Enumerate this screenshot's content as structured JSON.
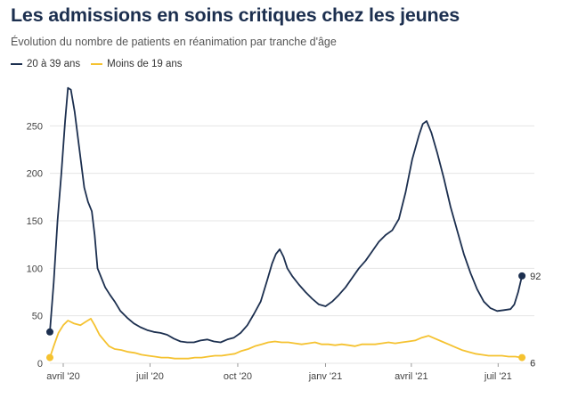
{
  "title": "Les admissions en soins critiques chez les jeunes",
  "subtitle": "Évolution du nombre de patients en réanimation par tranche d'âge",
  "colors": {
    "series_a": "#1c2f4f",
    "series_b": "#f5c230",
    "grid": "#e4e4e4"
  },
  "chart_data": {
    "type": "line",
    "title": "Les admissions en soins critiques chez les jeunes",
    "subtitle": "Évolution du nombre de patients en réanimation par tranche d'âge",
    "xlabel": "",
    "ylabel": "",
    "xlim": [
      "2020-03-18",
      "2021-08-08"
    ],
    "ylim": [
      0,
      300
    ],
    "yticks": [
      0,
      50,
      100,
      150,
      200,
      250
    ],
    "xticks": [
      {
        "date": "2020-04-01",
        "label": "avril '20"
      },
      {
        "date": "2020-07-01",
        "label": "juil '20"
      },
      {
        "date": "2020-10-01",
        "label": "oct '20"
      },
      {
        "date": "2021-01-01",
        "label": "janv '21"
      },
      {
        "date": "2021-04-01",
        "label": "avril '21"
      },
      {
        "date": "2021-07-01",
        "label": "juil '21"
      }
    ],
    "grid": "horizontal",
    "legend": "top-left",
    "series": [
      {
        "name": "20 à 39 ans",
        "color": "#1c2f4f",
        "end_label": "92",
        "points": [
          [
            "2020-03-18",
            33
          ],
          [
            "2020-03-22",
            85
          ],
          [
            "2020-03-26",
            150
          ],
          [
            "2020-03-30",
            200
          ],
          [
            "2020-04-03",
            255
          ],
          [
            "2020-04-06",
            290
          ],
          [
            "2020-04-09",
            288
          ],
          [
            "2020-04-13",
            265
          ],
          [
            "2020-04-18",
            225
          ],
          [
            "2020-04-23",
            185
          ],
          [
            "2020-04-27",
            170
          ],
          [
            "2020-05-01",
            160
          ],
          [
            "2020-05-04",
            135
          ],
          [
            "2020-05-07",
            100
          ],
          [
            "2020-05-11",
            90
          ],
          [
            "2020-05-15",
            80
          ],
          [
            "2020-05-20",
            72
          ],
          [
            "2020-05-25",
            65
          ],
          [
            "2020-05-31",
            55
          ],
          [
            "2020-06-07",
            48
          ],
          [
            "2020-06-14",
            42
          ],
          [
            "2020-06-21",
            38
          ],
          [
            "2020-06-28",
            35
          ],
          [
            "2020-07-05",
            33
          ],
          [
            "2020-07-12",
            32
          ],
          [
            "2020-07-19",
            30
          ],
          [
            "2020-07-26",
            26
          ],
          [
            "2020-08-02",
            23
          ],
          [
            "2020-08-09",
            22
          ],
          [
            "2020-08-16",
            22
          ],
          [
            "2020-08-23",
            24
          ],
          [
            "2020-08-30",
            25
          ],
          [
            "2020-09-06",
            23
          ],
          [
            "2020-09-13",
            22
          ],
          [
            "2020-09-20",
            25
          ],
          [
            "2020-09-27",
            27
          ],
          [
            "2020-10-04",
            32
          ],
          [
            "2020-10-11",
            40
          ],
          [
            "2020-10-18",
            52
          ],
          [
            "2020-10-25",
            65
          ],
          [
            "2020-11-01",
            88
          ],
          [
            "2020-11-06",
            105
          ],
          [
            "2020-11-10",
            115
          ],
          [
            "2020-11-14",
            120
          ],
          [
            "2020-11-18",
            112
          ],
          [
            "2020-11-22",
            100
          ],
          [
            "2020-11-27",
            92
          ],
          [
            "2020-12-04",
            83
          ],
          [
            "2020-12-11",
            75
          ],
          [
            "2020-12-18",
            68
          ],
          [
            "2020-12-25",
            62
          ],
          [
            "2021-01-01",
            60
          ],
          [
            "2021-01-08",
            65
          ],
          [
            "2021-01-15",
            72
          ],
          [
            "2021-01-22",
            80
          ],
          [
            "2021-01-29",
            90
          ],
          [
            "2021-02-05",
            100
          ],
          [
            "2021-02-12",
            108
          ],
          [
            "2021-02-19",
            118
          ],
          [
            "2021-02-26",
            128
          ],
          [
            "2021-03-05",
            135
          ],
          [
            "2021-03-12",
            140
          ],
          [
            "2021-03-19",
            152
          ],
          [
            "2021-03-26",
            180
          ],
          [
            "2021-04-02",
            215
          ],
          [
            "2021-04-09",
            240
          ],
          [
            "2021-04-13",
            252
          ],
          [
            "2021-04-17",
            255
          ],
          [
            "2021-04-22",
            243
          ],
          [
            "2021-04-28",
            222
          ],
          [
            "2021-05-05",
            195
          ],
          [
            "2021-05-12",
            165
          ],
          [
            "2021-05-19",
            140
          ],
          [
            "2021-05-26",
            115
          ],
          [
            "2021-06-02",
            95
          ],
          [
            "2021-06-09",
            78
          ],
          [
            "2021-06-16",
            65
          ],
          [
            "2021-06-23",
            58
          ],
          [
            "2021-06-30",
            55
          ],
          [
            "2021-07-07",
            56
          ],
          [
            "2021-07-14",
            57
          ],
          [
            "2021-07-18",
            62
          ],
          [
            "2021-07-22",
            75
          ],
          [
            "2021-07-26",
            92
          ]
        ]
      },
      {
        "name": "Moins de 19 ans",
        "color": "#f5c230",
        "end_label": "6",
        "points": [
          [
            "2020-03-18",
            6
          ],
          [
            "2020-03-22",
            18
          ],
          [
            "2020-03-27",
            32
          ],
          [
            "2020-04-01",
            40
          ],
          [
            "2020-04-06",
            45
          ],
          [
            "2020-04-12",
            42
          ],
          [
            "2020-04-19",
            40
          ],
          [
            "2020-04-25",
            44
          ],
          [
            "2020-04-30",
            47
          ],
          [
            "2020-05-04",
            40
          ],
          [
            "2020-05-09",
            30
          ],
          [
            "2020-05-14",
            24
          ],
          [
            "2020-05-19",
            18
          ],
          [
            "2020-05-25",
            15
          ],
          [
            "2020-06-01",
            14
          ],
          [
            "2020-06-08",
            12
          ],
          [
            "2020-06-15",
            11
          ],
          [
            "2020-06-22",
            9
          ],
          [
            "2020-06-29",
            8
          ],
          [
            "2020-07-06",
            7
          ],
          [
            "2020-07-13",
            6
          ],
          [
            "2020-07-20",
            6
          ],
          [
            "2020-07-27",
            5
          ],
          [
            "2020-08-03",
            5
          ],
          [
            "2020-08-10",
            5
          ],
          [
            "2020-08-17",
            6
          ],
          [
            "2020-08-24",
            6
          ],
          [
            "2020-08-31",
            7
          ],
          [
            "2020-09-07",
            8
          ],
          [
            "2020-09-14",
            8
          ],
          [
            "2020-09-21",
            9
          ],
          [
            "2020-09-28",
            10
          ],
          [
            "2020-10-05",
            13
          ],
          [
            "2020-10-12",
            15
          ],
          [
            "2020-10-19",
            18
          ],
          [
            "2020-10-26",
            20
          ],
          [
            "2020-11-02",
            22
          ],
          [
            "2020-11-09",
            23
          ],
          [
            "2020-11-16",
            22
          ],
          [
            "2020-11-23",
            22
          ],
          [
            "2020-11-30",
            21
          ],
          [
            "2020-12-07",
            20
          ],
          [
            "2020-12-14",
            21
          ],
          [
            "2020-12-21",
            22
          ],
          [
            "2020-12-28",
            20
          ],
          [
            "2021-01-04",
            20
          ],
          [
            "2021-01-11",
            19
          ],
          [
            "2021-01-18",
            20
          ],
          [
            "2021-01-25",
            19
          ],
          [
            "2021-02-01",
            18
          ],
          [
            "2021-02-08",
            20
          ],
          [
            "2021-02-15",
            20
          ],
          [
            "2021-02-22",
            20
          ],
          [
            "2021-03-01",
            21
          ],
          [
            "2021-03-08",
            22
          ],
          [
            "2021-03-15",
            21
          ],
          [
            "2021-03-22",
            22
          ],
          [
            "2021-03-29",
            23
          ],
          [
            "2021-04-05",
            24
          ],
          [
            "2021-04-12",
            27
          ],
          [
            "2021-04-19",
            29
          ],
          [
            "2021-04-26",
            26
          ],
          [
            "2021-05-03",
            23
          ],
          [
            "2021-05-10",
            20
          ],
          [
            "2021-05-17",
            17
          ],
          [
            "2021-05-24",
            14
          ],
          [
            "2021-05-31",
            12
          ],
          [
            "2021-06-07",
            10
          ],
          [
            "2021-06-14",
            9
          ],
          [
            "2021-06-21",
            8
          ],
          [
            "2021-06-28",
            8
          ],
          [
            "2021-07-05",
            8
          ],
          [
            "2021-07-12",
            7
          ],
          [
            "2021-07-19",
            7
          ],
          [
            "2021-07-26",
            6
          ]
        ]
      }
    ]
  }
}
